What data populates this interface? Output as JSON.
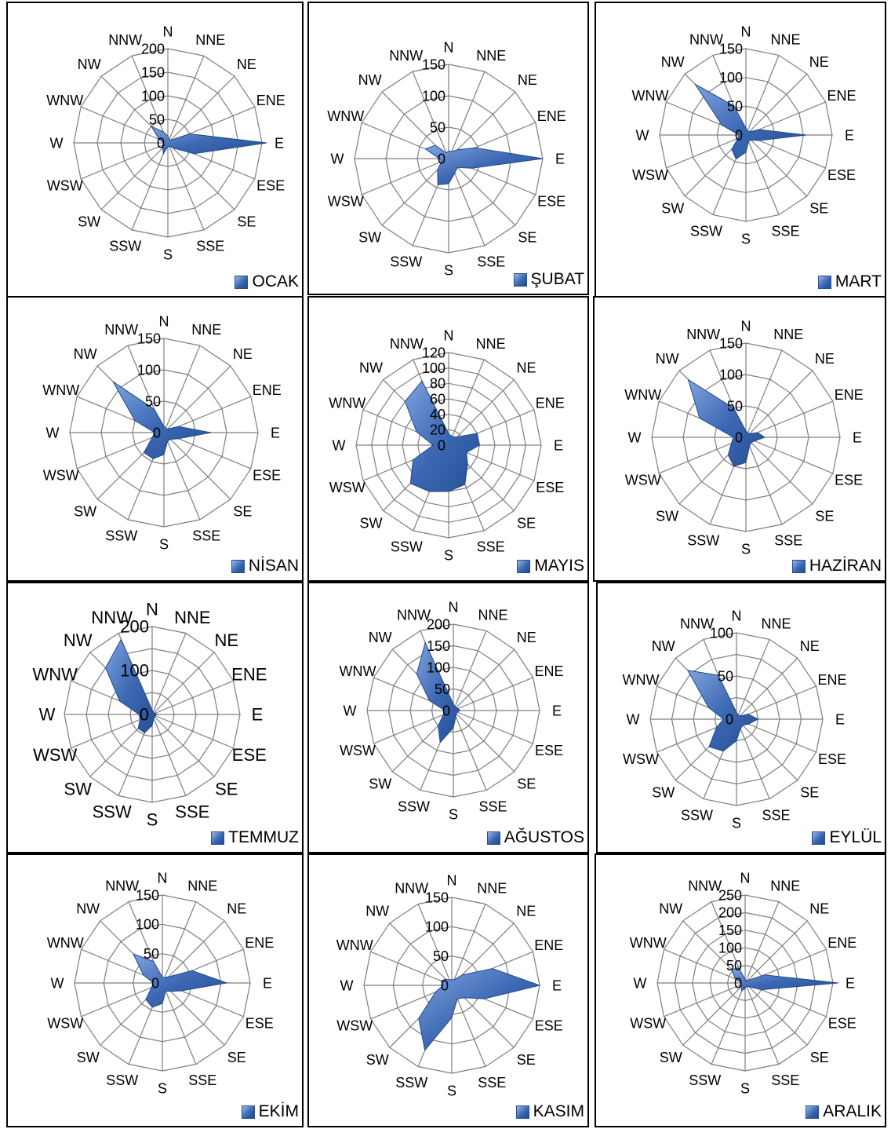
{
  "chart_data": [
    {
      "type": "radar",
      "series_name": "OCAK",
      "categories": [
        "N",
        "NNE",
        "NE",
        "ENE",
        "E",
        "ESE",
        "SE",
        "SSE",
        "S",
        "SSW",
        "SW",
        "WSW",
        "W",
        "WNW",
        "NW",
        "NNW"
      ],
      "category_labels": [
        "N",
        "NNE",
        "NE",
        "ENE",
        "E",
        "ESE",
        "SE",
        "SSE",
        "S",
        "SSW",
        "SW",
        "WSW",
        "W",
        "WNW",
        "NW",
        "NNW"
      ],
      "ticks": [
        0,
        50,
        100,
        150,
        200
      ],
      "rmax": 200,
      "values": [
        15,
        8,
        8,
        50,
        210,
        60,
        15,
        8,
        8,
        25,
        15,
        8,
        8,
        20,
        50,
        25
      ],
      "legend_placement": "bottom-right"
    },
    {
      "type": "radar",
      "series_name": "ŞUBAT",
      "categories": [
        "N",
        "NNE",
        "NE",
        "ENE",
        "E",
        "ESE",
        "SE",
        "SSE",
        "S",
        "SSW",
        "SW",
        "WSW",
        "W",
        "WNW",
        "NW",
        "NNW"
      ],
      "category_labels": [
        "N",
        "NNE",
        "NE",
        "ENE",
        "E",
        "ESE",
        "SE",
        "SSE",
        "S",
        "SSW",
        "SW",
        "WSW",
        "W",
        "WNW",
        "NW",
        "NNW"
      ],
      "ticks": [
        0,
        50,
        100,
        150
      ],
      "rmax": 150,
      "values": [
        12,
        12,
        20,
        45,
        150,
        40,
        20,
        25,
        40,
        45,
        25,
        12,
        15,
        40,
        30,
        10
      ],
      "legend_placement": "bottom-right"
    },
    {
      "type": "radar",
      "series_name": "MART",
      "categories": [
        "N",
        "NNE",
        "NE",
        "ENE",
        "E",
        "ESE",
        "SE",
        "SSE",
        "S",
        "SSW",
        "SW",
        "WSW",
        "W",
        "WNW",
        "NW",
        "NNW"
      ],
      "category_labels": [
        "N",
        "NNE",
        "NE",
        "ENE",
        "E",
        "ESE",
        "SE",
        "SSE",
        "S",
        "SSW",
        "SW",
        "WSW",
        "W",
        "WNW",
        "NW",
        "NNW"
      ],
      "ticks": [
        0,
        50,
        100,
        150
      ],
      "rmax": 150,
      "values": [
        12,
        8,
        8,
        25,
        105,
        25,
        12,
        12,
        30,
        45,
        35,
        15,
        12,
        45,
        125,
        55
      ],
      "legend_placement": "bottom-right"
    },
    {
      "type": "radar",
      "series_name": "NİSAN",
      "categories": [
        "N",
        "NNE",
        "NE",
        "ENE",
        "E",
        "ESE",
        "SE",
        "SSE",
        "S",
        "SSW",
        "SW",
        "WSW",
        "W",
        "WNW",
        "NW",
        "NNW"
      ],
      "category_labels": [
        "N",
        "NNE",
        "NE",
        "ENE",
        "E",
        "ESE",
        "SE",
        "SSE",
        "S",
        "SSW",
        "SW",
        "WSW",
        "W",
        "WNW",
        "NW",
        "NNW"
      ],
      "ticks": [
        0,
        50,
        100,
        150
      ],
      "rmax": 150,
      "values": [
        10,
        8,
        8,
        25,
        75,
        25,
        15,
        15,
        35,
        45,
        45,
        20,
        15,
        50,
        115,
        40
      ],
      "legend_placement": "bottom-right"
    },
    {
      "type": "radar",
      "series_name": "MAYIS",
      "categories": [
        "N",
        "NNE",
        "NE",
        "ENE",
        "E",
        "ESE",
        "SE",
        "SSE",
        "S",
        "SSW",
        "SW",
        "WSW",
        "W",
        "WNW",
        "NW",
        "NNW"
      ],
      "category_labels": [
        "N",
        "NNE",
        "NE",
        "ENE",
        "E",
        "ESE",
        "SE",
        "SSE",
        "S",
        "SSW",
        "SW",
        "WSW",
        "W",
        "WNW",
        "NW",
        "NNW"
      ],
      "ticks": [
        0,
        20,
        40,
        60,
        80,
        100,
        120
      ],
      "rmax": 120,
      "values": [
        15,
        12,
        15,
        40,
        40,
        25,
        35,
        55,
        60,
        65,
        70,
        50,
        20,
        45,
        80,
        90
      ],
      "legend_placement": "bottom-right"
    },
    {
      "type": "radar",
      "series_name": "HAZİRAN",
      "categories": [
        "N",
        "NNE",
        "NE",
        "ENE",
        "E",
        "ESE",
        "SE",
        "SSE",
        "S",
        "SSW",
        "SW",
        "WSW",
        "W",
        "WNW",
        "NW",
        "NNW"
      ],
      "category_labels": [
        "N",
        "NNE",
        "NE",
        "ENE",
        "E",
        "ESE",
        "SE",
        "SSE",
        "S",
        "SSW",
        "SW",
        "WSW",
        "W",
        "WNW",
        "NW",
        "NNW"
      ],
      "ticks": [
        0,
        50,
        100,
        150
      ],
      "rmax": 150,
      "values": [
        10,
        8,
        8,
        20,
        30,
        15,
        12,
        15,
        40,
        50,
        40,
        25,
        20,
        80,
        130,
        50
      ],
      "legend_placement": "bottom-right"
    },
    {
      "type": "radar",
      "series_name": "TEMMUZ",
      "categories": [
        "N",
        "NNE",
        "NE",
        "ENE",
        "E",
        "ESE",
        "SE",
        "SSE",
        "S",
        "SSW",
        "SW",
        "WSW",
        "W",
        "WNW",
        "NW",
        "NNW"
      ],
      "category_labels": [
        "N",
        "NNE",
        "NE",
        "ENE",
        "E",
        "ESE",
        "SE",
        "SSE",
        "S",
        "SSW",
        "SW",
        "WSW",
        "W",
        "WNW",
        "NW",
        "NNW"
      ],
      "ticks": [
        0,
        100,
        200
      ],
      "rmax": 200,
      "values": [
        10,
        5,
        5,
        8,
        10,
        8,
        8,
        10,
        25,
        45,
        45,
        30,
        30,
        80,
        150,
        185
      ],
      "legend_placement": "bottom-right"
    },
    {
      "type": "radar",
      "series_name": "AĞUSTOS",
      "categories": [
        "N",
        "NNE",
        "NE",
        "ENE",
        "E",
        "ESE",
        "SE",
        "SSE",
        "S",
        "SSW",
        "SW",
        "WSW",
        "W",
        "WNW",
        "NW",
        "NNW"
      ],
      "category_labels": [
        "N",
        "NNE",
        "NE",
        "ENE",
        "E",
        "ESE",
        "SE",
        "SSE",
        "S",
        "SSW",
        "SW",
        "WSW",
        "W",
        "WNW",
        "NW",
        "NNW"
      ],
      "ticks": [
        0,
        50,
        100,
        150,
        200
      ],
      "rmax": 200,
      "values": [
        15,
        10,
        10,
        12,
        15,
        10,
        10,
        15,
        40,
        80,
        50,
        25,
        20,
        60,
        120,
        170
      ],
      "legend_placement": "bottom-right"
    },
    {
      "type": "radar",
      "series_name": "EYLÜL",
      "categories": [
        "N",
        "NNE",
        "NE",
        "ENE",
        "E",
        "ESE",
        "SE",
        "SSE",
        "S",
        "SSW",
        "SW",
        "WSW",
        "W",
        "WNW",
        "NW",
        "NNW"
      ],
      "category_labels": [
        "N",
        "NNE",
        "NE",
        "ENE",
        "E",
        "ESE",
        "SE",
        "SSE",
        "S",
        "SSW",
        "SW",
        "WSW",
        "W",
        "WNW",
        "NW",
        "NNW"
      ],
      "ticks": [
        0,
        50,
        100
      ],
      "rmax": 100,
      "values": [
        8,
        5,
        5,
        15,
        25,
        15,
        10,
        12,
        25,
        40,
        45,
        25,
        15,
        35,
        80,
        55
      ],
      "legend_placement": "bottom-right"
    },
    {
      "type": "radar",
      "series_name": "EKİM",
      "categories": [
        "N",
        "NNE",
        "NE",
        "ENE",
        "E",
        "ESE",
        "SE",
        "SSE",
        "S",
        "SSW",
        "SW",
        "WSW",
        "W",
        "WNW",
        "NW",
        "NNW"
      ],
      "category_labels": [
        "N",
        "NNE",
        "NE",
        "ENE",
        "E",
        "ESE",
        "SE",
        "SSE",
        "S",
        "SSW",
        "SW",
        "WSW",
        "W",
        "WNW",
        "NW",
        "NNW"
      ],
      "ticks": [
        0,
        50,
        100,
        150
      ],
      "rmax": 150,
      "values": [
        10,
        10,
        15,
        55,
        110,
        35,
        20,
        15,
        35,
        45,
        40,
        20,
        15,
        35,
        70,
        40
      ],
      "legend_placement": "bottom-right"
    },
    {
      "type": "radar",
      "series_name": "KASIM",
      "categories": [
        "N",
        "NNE",
        "NE",
        "ENE",
        "E",
        "ESE",
        "SE",
        "SSE",
        "S",
        "SSW",
        "SW",
        "WSW",
        "W",
        "WNW",
        "NW",
        "NNW"
      ],
      "category_labels": [
        "N",
        "NNE",
        "NE",
        "ENE",
        "E",
        "ESE",
        "SE",
        "SSE",
        "S",
        "SSW",
        "SW",
        "WSW",
        "W",
        "WNW",
        "NW",
        "NNW"
      ],
      "ticks": [
        0,
        50,
        100,
        150
      ],
      "rmax": 150,
      "values": [
        10,
        10,
        25,
        75,
        150,
        60,
        30,
        25,
        55,
        120,
        80,
        30,
        15,
        20,
        15,
        10
      ],
      "legend_placement": "bottom-right"
    },
    {
      "type": "radar",
      "series_name": "ARALIK",
      "categories": [
        "N",
        "NNE",
        "NE",
        "ENE",
        "E",
        "ESE",
        "SE",
        "SSE",
        "S",
        "SSW",
        "SW",
        "WSW",
        "W",
        "WNW",
        "NW",
        "NNW"
      ],
      "category_labels": [
        "N",
        "NNE",
        "NE",
        "ENE",
        "E",
        "ESE",
        "SE",
        "SSE",
        "S",
        "SSW",
        "SW",
        "WSW",
        "W",
        "WNW",
        "NW",
        "NNW"
      ],
      "ticks": [
        0,
        50,
        100,
        150,
        200,
        250
      ],
      "rmax": 250,
      "values": [
        10,
        5,
        10,
        60,
        265,
        50,
        15,
        10,
        15,
        25,
        15,
        10,
        10,
        30,
        55,
        45
      ],
      "legend_placement": "bottom-right"
    }
  ],
  "colors": {
    "fill": "#3d68b4",
    "stroke": "#1f4a8a",
    "grid": "#7f7f7f"
  }
}
